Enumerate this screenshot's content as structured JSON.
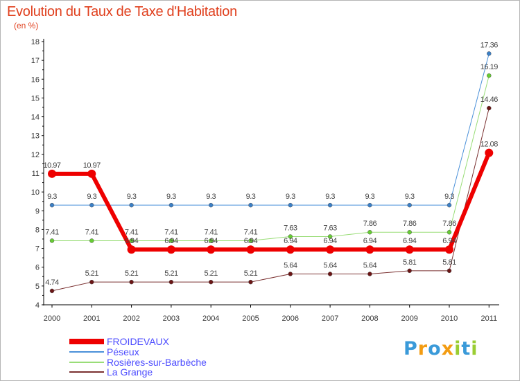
{
  "colors": {
    "title": "#e0401e",
    "axis": "#000000",
    "legend_text": "#4d4dff"
  },
  "chart_data": {
    "type": "line",
    "title": "Evolution du Taux de Taxe d'Habitation",
    "subtitle": "(en %)",
    "xlabel": "",
    "ylabel": "",
    "ylim": [
      4,
      18
    ],
    "y_ticks": [
      "4",
      "5",
      "6",
      "7",
      "8",
      "9",
      "10",
      "11",
      "12",
      "13",
      "14",
      "15",
      "16",
      "17",
      "18"
    ],
    "categories": [
      "2000",
      "2001",
      "2002",
      "2003",
      "2004",
      "2005",
      "2006",
      "2007",
      "2008",
      "2009",
      "2010",
      "2011"
    ],
    "series": [
      {
        "name": "Péseux",
        "color": "#4a90d9",
        "dot": "#3a7fc6",
        "width": 1,
        "values": [
          9.3,
          9.3,
          9.3,
          9.3,
          9.3,
          9.3,
          9.3,
          9.3,
          9.3,
          9.3,
          9.3,
          17.36
        ],
        "labels": [
          "9.3",
          "9.3",
          "9.3",
          "9.3",
          "9.3",
          "9.3",
          "9.3",
          "9.3",
          "9.3",
          "9.3",
          "9.3",
          "17.36"
        ]
      },
      {
        "name": "Rosières-sur-Barbèche",
        "color": "#99dd77",
        "dot": "#66cc33",
        "width": 1,
        "values": [
          7.41,
          7.41,
          7.41,
          7.41,
          7.41,
          7.41,
          7.63,
          7.63,
          7.86,
          7.86,
          7.86,
          16.19
        ],
        "labels": [
          "7.41",
          "7.41",
          "7.41",
          "7.41",
          "7.41",
          "7.41",
          "7.63",
          "7.63",
          "7.86",
          "7.86",
          "7.86",
          "16.19"
        ]
      },
      {
        "name": "La Grange",
        "color": "#7a3030",
        "dot": "#6b1515",
        "width": 1,
        "values": [
          4.74,
          5.21,
          5.21,
          5.21,
          5.21,
          5.21,
          5.64,
          5.64,
          5.64,
          5.81,
          5.81,
          14.46
        ],
        "labels": [
          "4.74",
          "5.21",
          "5.21",
          "5.21",
          "5.21",
          "5.21",
          "5.64",
          "5.64",
          "5.64",
          "5.81",
          "5.81",
          "14.46"
        ]
      },
      {
        "name": "FROIDEVAUX",
        "color": "#ee0000",
        "dot": "#ee0000",
        "width": 6,
        "values": [
          10.97,
          10.97,
          6.94,
          6.94,
          6.94,
          6.94,
          6.94,
          6.94,
          6.94,
          6.94,
          6.94,
          12.08
        ],
        "labels": [
          "10.97",
          "10.97",
          "6.94",
          "6.94",
          "6.94",
          "6.94",
          "6.94",
          "6.94",
          "6.94",
          "6.94",
          "6.94",
          "12.08"
        ]
      }
    ]
  },
  "legend": [
    {
      "label": "FROIDEVAUX",
      "color": "#ee0000",
      "thick": true
    },
    {
      "label": "Péseux",
      "color": "#4a90d9",
      "thick": false
    },
    {
      "label": "Rosières-sur-Barbèche",
      "color": "#99dd77",
      "thick": false
    },
    {
      "label": "La Grange",
      "color": "#7a3030",
      "thick": false
    }
  ],
  "logo": {
    "letters": [
      "P",
      "r",
      "o",
      "x",
      "i",
      "t",
      "i"
    ],
    "colors": [
      "#3a9ad9",
      "#f39c12",
      "#3a9ad9",
      "#f39c12",
      "#9acd32",
      "#3a9ad9",
      "#9acd32"
    ]
  }
}
